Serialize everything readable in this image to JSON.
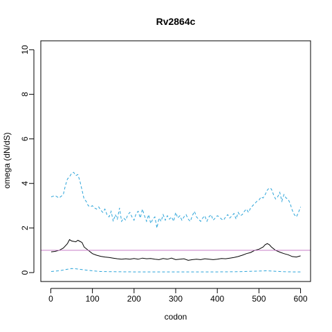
{
  "chart_data": {
    "type": "line",
    "title": "Rv2864c",
    "xlabel": "codon",
    "ylabel": "omega (dN/dS)",
    "xlim": [
      -24,
      624
    ],
    "ylim": [
      -0.4,
      10.4
    ],
    "xticks": [
      0,
      100,
      200,
      300,
      400,
      500,
      600
    ],
    "yticks": [
      0,
      2,
      4,
      6,
      8,
      10
    ],
    "grid": false,
    "reference_line": {
      "y": 1,
      "color": "#c77cc7"
    },
    "colors": {
      "omega": "#000000",
      "upper": "#29a3d9",
      "lower": "#29a3d9"
    },
    "series": [
      {
        "key": "omega",
        "style": "solid",
        "x": [
          1,
          10,
          20,
          30,
          40,
          45,
          50,
          55,
          60,
          65,
          70,
          75,
          80,
          90,
          100,
          110,
          120,
          130,
          140,
          150,
          160,
          170,
          180,
          190,
          200,
          210,
          220,
          230,
          240,
          250,
          260,
          270,
          280,
          290,
          300,
          310,
          320,
          330,
          340,
          350,
          360,
          370,
          380,
          390,
          400,
          410,
          420,
          430,
          440,
          450,
          460,
          470,
          480,
          490,
          500,
          510,
          515,
          520,
          525,
          530,
          540,
          550,
          560,
          570,
          580,
          590,
          600
        ],
        "y": [
          0.93,
          0.95,
          1.0,
          1.1,
          1.3,
          1.48,
          1.42,
          1.4,
          1.38,
          1.45,
          1.4,
          1.35,
          1.15,
          1.0,
          0.85,
          0.78,
          0.73,
          0.7,
          0.68,
          0.65,
          0.62,
          0.6,
          0.62,
          0.6,
          0.63,
          0.6,
          0.65,
          0.62,
          0.63,
          0.6,
          0.58,
          0.63,
          0.6,
          0.65,
          0.58,
          0.6,
          0.62,
          0.55,
          0.58,
          0.6,
          0.58,
          0.62,
          0.6,
          0.58,
          0.6,
          0.63,
          0.62,
          0.65,
          0.68,
          0.72,
          0.78,
          0.85,
          0.9,
          1.0,
          1.05,
          1.15,
          1.25,
          1.3,
          1.25,
          1.15,
          1.0,
          0.92,
          0.85,
          0.8,
          0.72,
          0.7,
          0.75
        ]
      },
      {
        "key": "upper",
        "style": "dashed",
        "x": [
          1,
          10,
          20,
          30,
          35,
          40,
          45,
          50,
          55,
          60,
          65,
          70,
          75,
          80,
          85,
          90,
          95,
          100,
          105,
          110,
          115,
          120,
          125,
          130,
          135,
          140,
          145,
          150,
          155,
          160,
          165,
          170,
          175,
          180,
          185,
          190,
          195,
          200,
          205,
          210,
          215,
          220,
          225,
          230,
          235,
          240,
          245,
          250,
          255,
          260,
          265,
          270,
          275,
          280,
          285,
          290,
          295,
          300,
          305,
          310,
          315,
          320,
          325,
          330,
          335,
          340,
          345,
          350,
          355,
          360,
          365,
          370,
          375,
          380,
          385,
          390,
          395,
          400,
          405,
          410,
          415,
          420,
          425,
          430,
          435,
          440,
          445,
          450,
          455,
          460,
          465,
          470,
          475,
          480,
          485,
          490,
          495,
          500,
          505,
          510,
          515,
          520,
          525,
          530,
          535,
          540,
          545,
          550,
          555,
          560,
          565,
          570,
          575,
          580,
          585,
          590,
          595,
          600
        ],
        "y": [
          3.4,
          3.45,
          3.35,
          3.5,
          3.9,
          4.2,
          4.3,
          4.45,
          4.5,
          4.35,
          4.4,
          4.1,
          3.7,
          3.3,
          3.2,
          3.0,
          2.95,
          3.0,
          2.9,
          2.85,
          2.95,
          2.8,
          2.7,
          2.85,
          2.6,
          2.5,
          2.75,
          2.3,
          2.6,
          2.4,
          2.9,
          2.3,
          2.45,
          2.35,
          2.6,
          2.7,
          2.5,
          2.35,
          2.65,
          2.75,
          2.45,
          2.85,
          2.55,
          2.3,
          2.6,
          2.2,
          2.4,
          2.5,
          2.0,
          2.45,
          2.3,
          2.6,
          2.35,
          2.55,
          2.4,
          2.5,
          2.3,
          2.7,
          2.45,
          2.55,
          2.35,
          2.5,
          2.6,
          2.4,
          2.3,
          2.55,
          2.75,
          2.5,
          2.4,
          2.3,
          2.45,
          2.55,
          2.3,
          2.5,
          2.6,
          2.35,
          2.45,
          2.55,
          2.5,
          2.4,
          2.35,
          2.5,
          2.6,
          2.45,
          2.55,
          2.65,
          2.4,
          2.7,
          2.55,
          2.6,
          2.75,
          2.85,
          2.7,
          2.9,
          3.0,
          3.1,
          3.2,
          3.25,
          3.4,
          3.35,
          3.5,
          3.7,
          3.8,
          3.75,
          3.5,
          3.3,
          3.4,
          3.6,
          3.2,
          3.5,
          3.35,
          3.3,
          3.1,
          2.8,
          2.6,
          2.5,
          2.7,
          2.95
        ]
      },
      {
        "key": "lower",
        "style": "dashed",
        "x": [
          1,
          20,
          40,
          50,
          60,
          80,
          100,
          120,
          150,
          200,
          250,
          300,
          350,
          400,
          450,
          480,
          500,
          520,
          540,
          560,
          580,
          600
        ],
        "y": [
          0.05,
          0.08,
          0.15,
          0.18,
          0.17,
          0.12,
          0.08,
          0.05,
          0.04,
          0.03,
          0.03,
          0.03,
          0.03,
          0.03,
          0.04,
          0.06,
          0.07,
          0.08,
          0.06,
          0.04,
          0.03,
          0.03
        ]
      }
    ]
  }
}
